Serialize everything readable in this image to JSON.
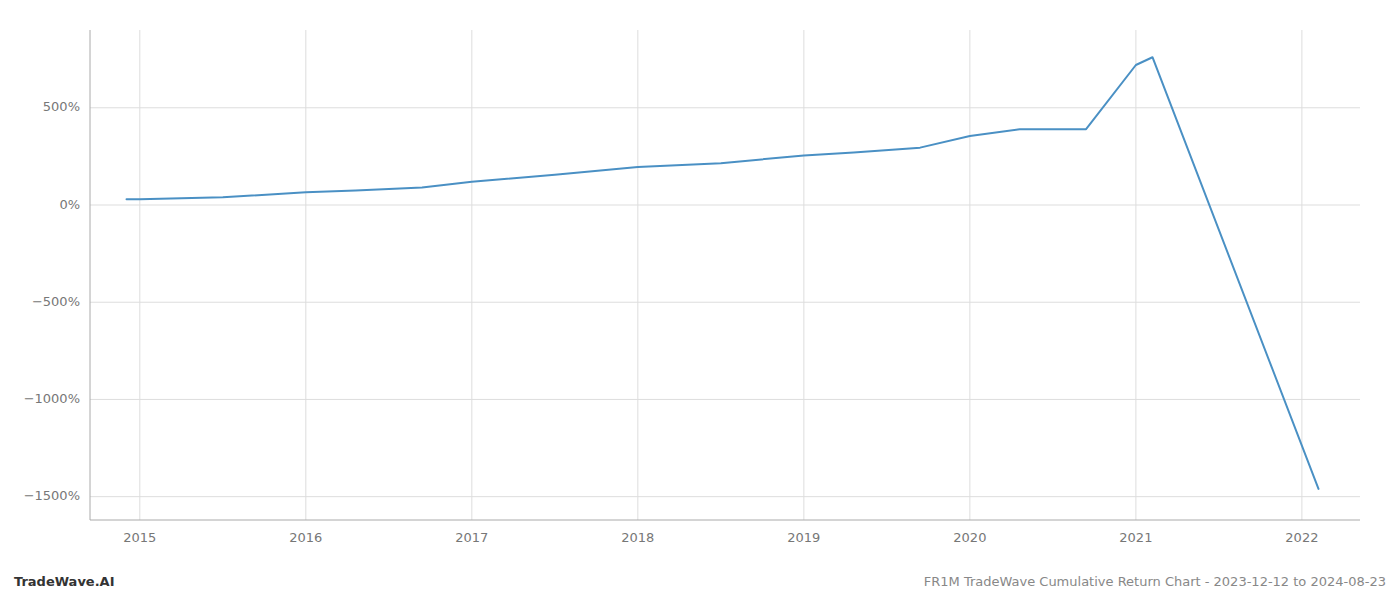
{
  "chart_data": {
    "type": "line",
    "x": [
      2014.92,
      2015.0,
      2015.5,
      2016.0,
      2016.3,
      2016.7,
      2017.0,
      2017.5,
      2018.0,
      2018.5,
      2019.0,
      2019.3,
      2019.7,
      2020.0,
      2020.3,
      2020.7,
      2021.0,
      2021.1,
      2022.1
    ],
    "values": [
      30,
      30,
      40,
      65,
      75,
      90,
      120,
      155,
      195,
      215,
      255,
      270,
      295,
      355,
      390,
      390,
      720,
      760,
      -1460
    ],
    "color": "#4a90c4",
    "xlim": [
      2014.7,
      2022.35
    ],
    "ylim": [
      -1620,
      900
    ],
    "xticks": [
      2015,
      2016,
      2017,
      2018,
      2019,
      2020,
      2021,
      2022
    ],
    "yticks": [
      {
        "value": -1500,
        "label": "−1500%"
      },
      {
        "value": -1000,
        "label": "−1000%"
      },
      {
        "value": -500,
        "label": "−500%"
      },
      {
        "value": 0,
        "label": "0%"
      },
      {
        "value": 500,
        "label": "500%"
      }
    ],
    "grid": true,
    "annotations": [
      "TradeWave.AI",
      "FR1M TradeWave Cumulative Return Chart - 2023-12-12 to 2024-08-23"
    ]
  }
}
